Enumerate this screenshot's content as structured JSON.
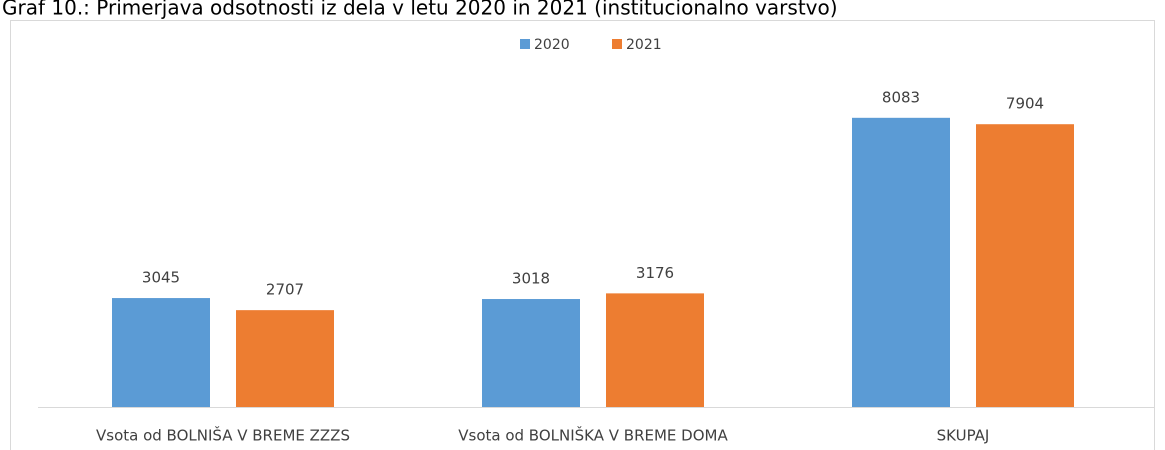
{
  "chart_data": {
    "type": "bar",
    "title": "Graf 10.: Primerjava odsotnosti iz dela v letu 2020 in 2021 (institucionalno varstvo)",
    "categories": [
      "Vsota od BOLNIŠA V BREME ZZZS",
      "Vsota od BOLNIŠKA V BREME DOMA",
      "SKUPAJ"
    ],
    "series": [
      {
        "name": "2020",
        "color": "#5b9bd5",
        "values": [
          3045,
          3018,
          8083
        ]
      },
      {
        "name": "2021",
        "color": "#ed7d31",
        "values": [
          2707,
          3176,
          7904
        ]
      }
    ],
    "ylim": [
      0,
      9000
    ]
  }
}
